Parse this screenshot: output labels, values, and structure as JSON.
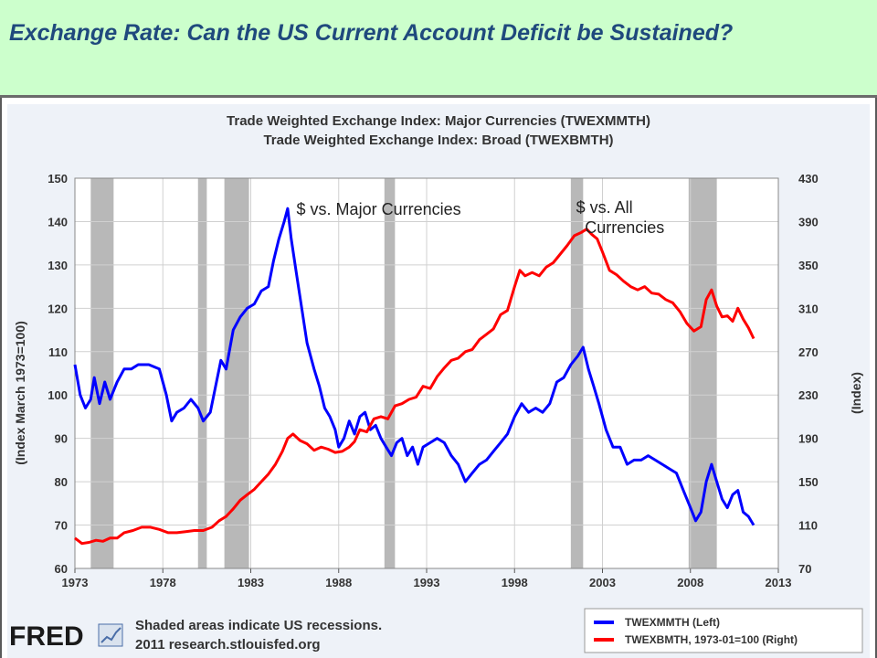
{
  "slide": {
    "title": "Exchange Rate: Can the US Current Account Deficit be Sustained?"
  },
  "colors": {
    "header_bg": "#ccffcc",
    "title_text": "#1f497d",
    "major_series": "#0000ff",
    "broad_series": "#ff0000",
    "recession_shade": "#b8b8b8",
    "plot_bg": "#ffffff",
    "chart_bg": "#eef2f8"
  },
  "chart_data": {
    "type": "line",
    "title": "Trade Weighted Exchange Index: Major Currencies (TWEXMMTH)",
    "subtitle": "Trade Weighted Exchange Index: Broad (TWEXBMTH)",
    "xlabel": "",
    "ylabel": "(Index March 1973=100)",
    "ylabel_right": "(Index)",
    "xlim": [
      1973,
      2013
    ],
    "ylim": [
      60,
      150
    ],
    "ylim_right": [
      70,
      430
    ],
    "x_ticks": [
      "1973",
      "1978",
      "1983",
      "1988",
      "1993",
      "1998",
      "2003",
      "2008",
      "2013"
    ],
    "y_ticks": [
      "60",
      "70",
      "80",
      "90",
      "100",
      "110",
      "120",
      "130",
      "140",
      "150"
    ],
    "y_ticks_right": [
      "70",
      "110",
      "150",
      "190",
      "230",
      "270",
      "310",
      "350",
      "390",
      "430"
    ],
    "grid": true,
    "legend_position": "bottom-right",
    "recessions": [
      [
        1973.9,
        1975.2
      ],
      [
        1980.0,
        1980.5
      ],
      [
        1981.5,
        1982.9
      ],
      [
        1990.6,
        1991.2
      ],
      [
        2001.2,
        2001.9
      ],
      [
        2007.9,
        2009.5
      ]
    ],
    "annotations": [
      {
        "text": "$ vs. Major Currencies",
        "x": 1985.6,
        "y": 141.6
      },
      {
        "text": "$ vs. All",
        "x": 2001.5,
        "y": 142
      },
      {
        "text": "Currencies",
        "x": 2002.0,
        "y": 137.4
      }
    ],
    "series": [
      {
        "name": "TWEXMMTH (Left)",
        "axis": "left",
        "points": [
          [
            1973.0,
            107
          ],
          [
            1973.3,
            100
          ],
          [
            1973.6,
            97
          ],
          [
            1973.9,
            99
          ],
          [
            1974.1,
            104
          ],
          [
            1974.4,
            98
          ],
          [
            1974.7,
            103
          ],
          [
            1975.0,
            99
          ],
          [
            1975.4,
            103
          ],
          [
            1975.8,
            106
          ],
          [
            1976.2,
            106
          ],
          [
            1976.6,
            107
          ],
          [
            1977.2,
            107
          ],
          [
            1977.8,
            106
          ],
          [
            1978.2,
            100
          ],
          [
            1978.5,
            94
          ],
          [
            1978.8,
            96
          ],
          [
            1979.2,
            97
          ],
          [
            1979.6,
            99
          ],
          [
            1980.0,
            97
          ],
          [
            1980.3,
            94
          ],
          [
            1980.7,
            96
          ],
          [
            1981.0,
            102
          ],
          [
            1981.3,
            108
          ],
          [
            1981.6,
            106
          ],
          [
            1982.0,
            115
          ],
          [
            1982.4,
            118
          ],
          [
            1982.8,
            120
          ],
          [
            1983.2,
            121
          ],
          [
            1983.6,
            124
          ],
          [
            1984.0,
            125
          ],
          [
            1984.3,
            131
          ],
          [
            1984.6,
            136
          ],
          [
            1984.9,
            140
          ],
          [
            1985.1,
            143
          ],
          [
            1985.3,
            136
          ],
          [
            1985.6,
            128
          ],
          [
            1985.9,
            120
          ],
          [
            1986.2,
            112
          ],
          [
            1986.6,
            106
          ],
          [
            1986.9,
            102
          ],
          [
            1987.2,
            97
          ],
          [
            1987.5,
            95
          ],
          [
            1987.8,
            92
          ],
          [
            1988.0,
            88
          ],
          [
            1988.3,
            90
          ],
          [
            1988.6,
            94
          ],
          [
            1988.9,
            91
          ],
          [
            1989.2,
            95
          ],
          [
            1989.5,
            96
          ],
          [
            1989.8,
            92
          ],
          [
            1990.1,
            93
          ],
          [
            1990.4,
            90
          ],
          [
            1990.7,
            88
          ],
          [
            1991.0,
            86
          ],
          [
            1991.3,
            89
          ],
          [
            1991.6,
            90
          ],
          [
            1991.9,
            86
          ],
          [
            1992.2,
            88
          ],
          [
            1992.5,
            84
          ],
          [
            1992.8,
            88
          ],
          [
            1993.2,
            89
          ],
          [
            1993.6,
            90
          ],
          [
            1994.0,
            89
          ],
          [
            1994.4,
            86
          ],
          [
            1994.8,
            84
          ],
          [
            1995.2,
            80
          ],
          [
            1995.6,
            82
          ],
          [
            1996.0,
            84
          ],
          [
            1996.4,
            85
          ],
          [
            1996.8,
            87
          ],
          [
            1997.2,
            89
          ],
          [
            1997.6,
            91
          ],
          [
            1998.0,
            95
          ],
          [
            1998.4,
            98
          ],
          [
            1998.8,
            96
          ],
          [
            1999.2,
            97
          ],
          [
            1999.6,
            96
          ],
          [
            2000.0,
            98
          ],
          [
            2000.4,
            103
          ],
          [
            2000.8,
            104
          ],
          [
            2001.2,
            107
          ],
          [
            2001.6,
            109
          ],
          [
            2001.9,
            111
          ],
          [
            2002.2,
            106
          ],
          [
            2002.5,
            102
          ],
          [
            2002.8,
            98
          ],
          [
            2003.2,
            92
          ],
          [
            2003.6,
            88
          ],
          [
            2004.0,
            88
          ],
          [
            2004.4,
            84
          ],
          [
            2004.8,
            85
          ],
          [
            2005.2,
            85
          ],
          [
            2005.6,
            86
          ],
          [
            2006.0,
            85
          ],
          [
            2006.4,
            84
          ],
          [
            2006.8,
            83
          ],
          [
            2007.2,
            82
          ],
          [
            2007.6,
            78
          ],
          [
            2008.0,
            74
          ],
          [
            2008.3,
            71
          ],
          [
            2008.6,
            73
          ],
          [
            2008.9,
            80
          ],
          [
            2009.2,
            84
          ],
          [
            2009.5,
            80
          ],
          [
            2009.8,
            76
          ],
          [
            2010.1,
            74
          ],
          [
            2010.4,
            77
          ],
          [
            2010.7,
            78
          ],
          [
            2011.0,
            73
          ],
          [
            2011.3,
            72
          ],
          [
            2011.6,
            70
          ]
        ]
      },
      {
        "name": "TWEXBMTH, 1973-01=100 (Right)",
        "axis": "right",
        "points": [
          [
            1973.0,
            98
          ],
          [
            1973.4,
            93
          ],
          [
            1973.8,
            94
          ],
          [
            1974.2,
            96
          ],
          [
            1974.6,
            95
          ],
          [
            1975.0,
            98
          ],
          [
            1975.4,
            98
          ],
          [
            1975.8,
            103
          ],
          [
            1976.3,
            105
          ],
          [
            1976.8,
            108
          ],
          [
            1977.3,
            108
          ],
          [
            1977.8,
            106
          ],
          [
            1978.3,
            103
          ],
          [
            1978.8,
            103
          ],
          [
            1979.3,
            104
          ],
          [
            1979.8,
            105
          ],
          [
            1980.3,
            105
          ],
          [
            1980.8,
            108
          ],
          [
            1981.2,
            114
          ],
          [
            1981.6,
            118
          ],
          [
            1982.0,
            125
          ],
          [
            1982.4,
            133
          ],
          [
            1982.8,
            138
          ],
          [
            1983.2,
            143
          ],
          [
            1983.6,
            150
          ],
          [
            1984.0,
            157
          ],
          [
            1984.4,
            166
          ],
          [
            1984.8,
            178
          ],
          [
            1985.1,
            190
          ],
          [
            1985.4,
            194
          ],
          [
            1985.8,
            188
          ],
          [
            1986.2,
            185
          ],
          [
            1986.6,
            179
          ],
          [
            1987.0,
            182
          ],
          [
            1987.4,
            180
          ],
          [
            1987.8,
            177
          ],
          [
            1988.2,
            178
          ],
          [
            1988.6,
            182
          ],
          [
            1988.9,
            187
          ],
          [
            1989.2,
            198
          ],
          [
            1989.6,
            196
          ],
          [
            1990.0,
            208
          ],
          [
            1990.4,
            210
          ],
          [
            1990.8,
            208
          ],
          [
            1991.2,
            220
          ],
          [
            1991.6,
            222
          ],
          [
            1992.0,
            226
          ],
          [
            1992.4,
            228
          ],
          [
            1992.8,
            238
          ],
          [
            1993.2,
            236
          ],
          [
            1993.6,
            247
          ],
          [
            1994.0,
            255
          ],
          [
            1994.4,
            262
          ],
          [
            1994.8,
            264
          ],
          [
            1995.2,
            270
          ],
          [
            1995.6,
            272
          ],
          [
            1996.0,
            281
          ],
          [
            1996.4,
            286
          ],
          [
            1996.8,
            291
          ],
          [
            1997.2,
            304
          ],
          [
            1997.6,
            308
          ],
          [
            1998.0,
            330
          ],
          [
            1998.3,
            345
          ],
          [
            1998.6,
            340
          ],
          [
            1999.0,
            343
          ],
          [
            1999.4,
            340
          ],
          [
            1999.8,
            348
          ],
          [
            2000.2,
            352
          ],
          [
            2000.6,
            360
          ],
          [
            2001.0,
            368
          ],
          [
            2001.4,
            377
          ],
          [
            2001.8,
            380
          ],
          [
            2002.1,
            383
          ],
          [
            2002.4,
            378
          ],
          [
            2002.7,
            374
          ],
          [
            2003.0,
            362
          ],
          [
            2003.4,
            345
          ],
          [
            2003.8,
            341
          ],
          [
            2004.2,
            335
          ],
          [
            2004.6,
            330
          ],
          [
            2005.0,
            327
          ],
          [
            2005.4,
            330
          ],
          [
            2005.8,
            324
          ],
          [
            2006.2,
            323
          ],
          [
            2006.6,
            318
          ],
          [
            2007.0,
            315
          ],
          [
            2007.4,
            307
          ],
          [
            2007.8,
            296
          ],
          [
            2008.2,
            289
          ],
          [
            2008.6,
            293
          ],
          [
            2008.9,
            318
          ],
          [
            2009.2,
            327
          ],
          [
            2009.5,
            312
          ],
          [
            2009.8,
            302
          ],
          [
            2010.1,
            303
          ],
          [
            2010.4,
            298
          ],
          [
            2010.7,
            310
          ],
          [
            2011.0,
            300
          ],
          [
            2011.3,
            292
          ],
          [
            2011.6,
            282
          ]
        ]
      }
    ]
  },
  "footer": {
    "logo": "FRED",
    "note_line1": "Shaded areas indicate US recessions.",
    "note_line2": "2011 research.stlouisfed.org"
  }
}
